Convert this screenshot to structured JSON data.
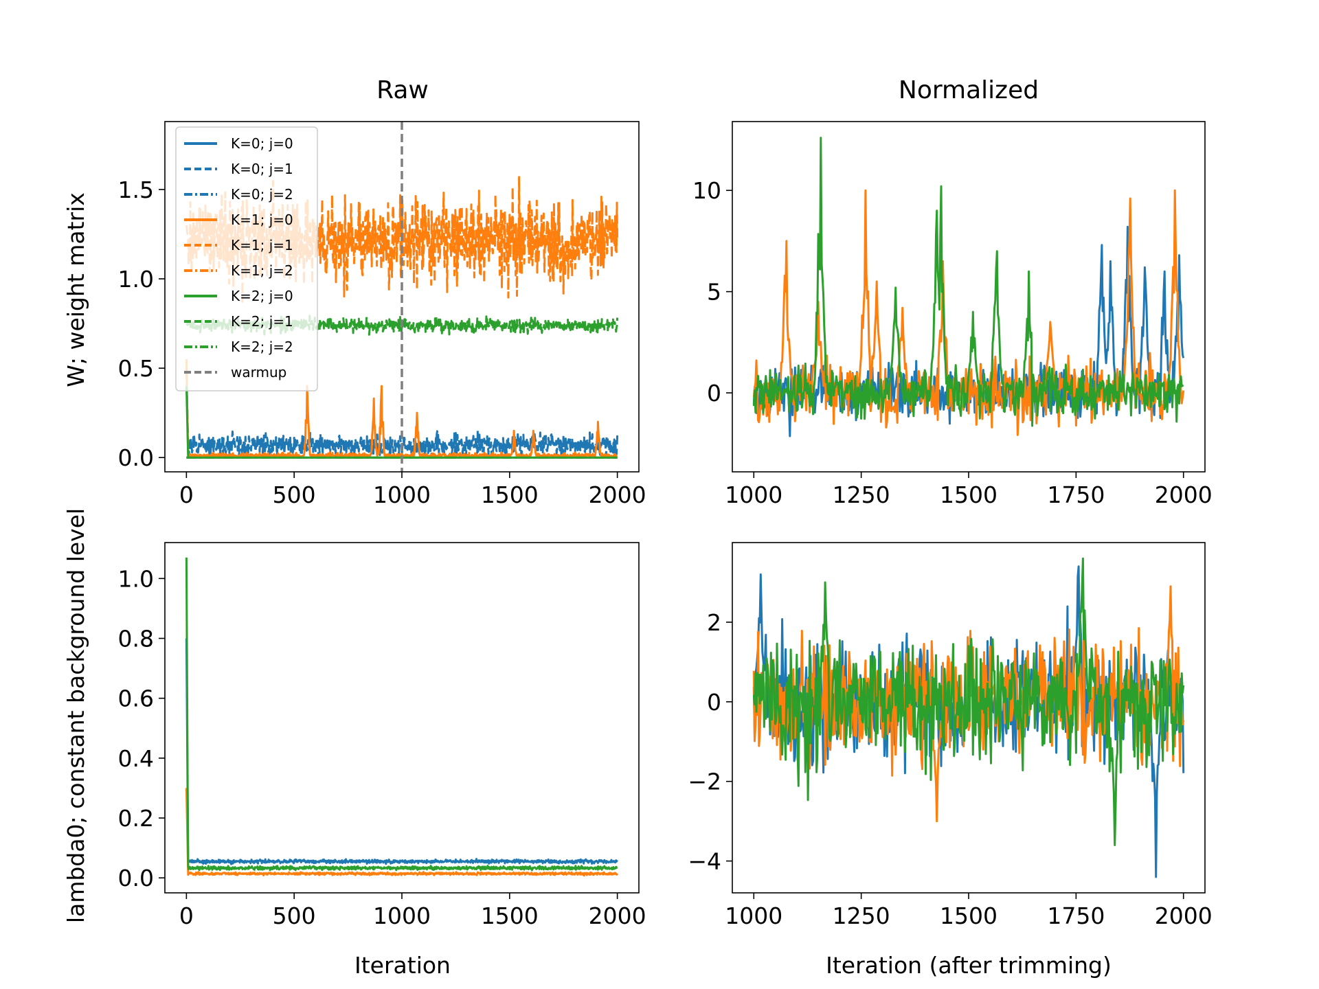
{
  "chart_data": [
    {
      "id": "W_raw",
      "type": "line",
      "title": "Raw",
      "xlabel": "",
      "ylabel": "W; weight matrix",
      "xlim": [
        -100,
        2100
      ],
      "ylim": [
        -0.08,
        1.88
      ],
      "xticks": [
        0,
        500,
        1000,
        1500,
        2000
      ],
      "yticks": [
        0.0,
        0.5,
        1.0,
        1.5
      ],
      "xtick_labels": [
        "0",
        "500",
        "1000",
        "1500",
        "2000"
      ],
      "ytick_labels": [
        "0.0",
        "0.5",
        "1.0",
        "1.5"
      ],
      "x_range": [
        0,
        2000
      ],
      "vline": {
        "x": 1000,
        "color": "#7f7f7f",
        "style": "dashed",
        "name": "warmup"
      },
      "legend": {
        "placement": "upper-left"
      },
      "series": [
        {
          "name": "K=0; j=0",
          "color": "#1f77b4",
          "style": "solid",
          "initial": 0.0,
          "mean": 0.0,
          "noise": 0.0,
          "spikes": []
        },
        {
          "name": "K=0; j=1",
          "color": "#1f77b4",
          "style": "dashed",
          "initial": 0.5,
          "mean": 0.07,
          "noise": 0.04,
          "spikes": []
        },
        {
          "name": "K=0; j=2",
          "color": "#1f77b4",
          "style": "dashdot",
          "initial": 0.0,
          "mean": 0.0,
          "noise": 0.0,
          "spikes": []
        },
        {
          "name": "K=1; j=0",
          "color": "#ff7f0e",
          "style": "solid",
          "initial": 0.55,
          "mean": 0.01,
          "noise": 0.01,
          "spikes": [
            [
              560,
              0.4
            ],
            [
              870,
              0.33
            ],
            [
              905,
              0.4
            ],
            [
              1070,
              0.25
            ],
            [
              1520,
              0.15
            ],
            [
              1910,
              0.2
            ],
            [
              1610,
              0.15
            ]
          ]
        },
        {
          "name": "K=1; j=1",
          "color": "#ff7f0e",
          "style": "dashed",
          "initial": 1.3,
          "mean": 1.22,
          "noise": 0.16,
          "spikes": []
        },
        {
          "name": "K=1; j=2",
          "color": "#ff7f0e",
          "style": "dashdot",
          "initial": 0.0,
          "mean": 0.0,
          "noise": 0.0,
          "spikes": []
        },
        {
          "name": "K=2; j=0",
          "color": "#2ca02c",
          "style": "solid",
          "initial": 0.4,
          "mean": 0.0,
          "noise": 0.0,
          "spikes": []
        },
        {
          "name": "K=2; j=1",
          "color": "#2ca02c",
          "style": "dashed",
          "initial": 0.75,
          "mean": 0.74,
          "noise": 0.025,
          "spikes": []
        },
        {
          "name": "K=2; j=2",
          "color": "#2ca02c",
          "style": "dashdot",
          "initial": 0.0,
          "mean": 0.0,
          "noise": 0.0,
          "spikes": []
        }
      ]
    },
    {
      "id": "W_norm",
      "type": "line",
      "title": "Normalized",
      "xlabel": "",
      "ylabel": "",
      "xlim": [
        950,
        2050
      ],
      "ylim": [
        -3.9,
        13.4
      ],
      "xticks": [
        1000,
        1250,
        1500,
        1750,
        2000
      ],
      "yticks": [
        0,
        5,
        10
      ],
      "xtick_labels": [
        "1000",
        "1250",
        "1500",
        "1750",
        "2000"
      ],
      "ytick_labels": [
        "0",
        "5",
        "10"
      ],
      "x_range": [
        1000,
        2000
      ],
      "series": [
        {
          "name": "K=0",
          "color": "#1f77b4",
          "mean": 0,
          "noise": 0.9,
          "spikes": [
            [
              1810,
              7.3
            ],
            [
              1830,
              6.5
            ],
            [
              1870,
              8.2
            ],
            [
              1910,
              6.2
            ],
            [
              1955,
              6.0
            ],
            [
              1990,
              6.8
            ]
          ]
        },
        {
          "name": "K=1",
          "color": "#ff7f0e",
          "mean": 0,
          "noise": 1.0,
          "spikes": [
            [
              1075,
              7.5
            ],
            [
              1150,
              4.5
            ],
            [
              1260,
              10.0
            ],
            [
              1285,
              5.5
            ],
            [
              1345,
              4.2
            ],
            [
              1440,
              6.5
            ],
            [
              1690,
              3.5
            ],
            [
              1875,
              9.6
            ],
            [
              1980,
              10.0
            ]
          ]
        },
        {
          "name": "K=2",
          "color": "#2ca02c",
          "mean": 0,
          "noise": 0.8,
          "spikes": [
            [
              1155,
              12.6
            ],
            [
              1435,
              10.2
            ],
            [
              1425,
              9.0
            ],
            [
              1330,
              5.2
            ],
            [
              1565,
              7.0
            ],
            [
              1640,
              6.0
            ],
            [
              1510,
              4.0
            ]
          ]
        }
      ]
    },
    {
      "id": "lambda_raw",
      "type": "line",
      "title": "",
      "xlabel": "Iteration",
      "ylabel": "lambda0; constant background level",
      "xlim": [
        -100,
        2100
      ],
      "ylim": [
        -0.05,
        1.12
      ],
      "xticks": [
        0,
        500,
        1000,
        1500,
        2000
      ],
      "yticks": [
        0.0,
        0.2,
        0.4,
        0.6,
        0.8,
        1.0
      ],
      "xtick_labels": [
        "0",
        "500",
        "1000",
        "1500",
        "2000"
      ],
      "ytick_labels": [
        "0.0",
        "0.2",
        "0.4",
        "0.6",
        "0.8",
        "1.0"
      ],
      "x_range": [
        0,
        2000
      ],
      "series": [
        {
          "name": "K=0",
          "color": "#1f77b4",
          "initial": 0.8,
          "mean": 0.055,
          "noise": 0.004
        },
        {
          "name": "K=1",
          "color": "#ff7f0e",
          "initial": 0.3,
          "mean": 0.014,
          "noise": 0.003
        },
        {
          "name": "K=2",
          "color": "#2ca02c",
          "initial": 1.07,
          "mean": 0.033,
          "noise": 0.004
        }
      ]
    },
    {
      "id": "lambda_norm",
      "type": "line",
      "title": "",
      "xlabel": "Iteration (after trimming)",
      "ylabel": "",
      "xlim": [
        950,
        2050
      ],
      "ylim": [
        -4.8,
        4.0
      ],
      "xticks": [
        1000,
        1250,
        1500,
        1750,
        2000
      ],
      "yticks": [
        -4,
        -2,
        0,
        2
      ],
      "xtick_labels": [
        "1000",
        "1250",
        "1500",
        "1750",
        "2000"
      ],
      "ytick_labels": [
        "−4",
        "−2",
        "0",
        "2"
      ],
      "x_range": [
        1000,
        2000
      ],
      "series": [
        {
          "name": "K=0",
          "color": "#1f77b4",
          "mean": 0,
          "noise": 1.0,
          "spikes": [
            [
              1935,
              -4.4
            ],
            [
              1015,
              3.2
            ],
            [
              1755,
              3.4
            ]
          ]
        },
        {
          "name": "K=1",
          "color": "#ff7f0e",
          "mean": 0,
          "noise": 1.0,
          "spikes": [
            [
              1425,
              -3.0
            ],
            [
              1970,
              2.9
            ]
          ]
        },
        {
          "name": "K=2",
          "color": "#2ca02c",
          "mean": 0,
          "noise": 1.0,
          "spikes": [
            [
              1765,
              3.6
            ],
            [
              1840,
              -3.6
            ],
            [
              1165,
              3.0
            ]
          ]
        }
      ]
    }
  ]
}
